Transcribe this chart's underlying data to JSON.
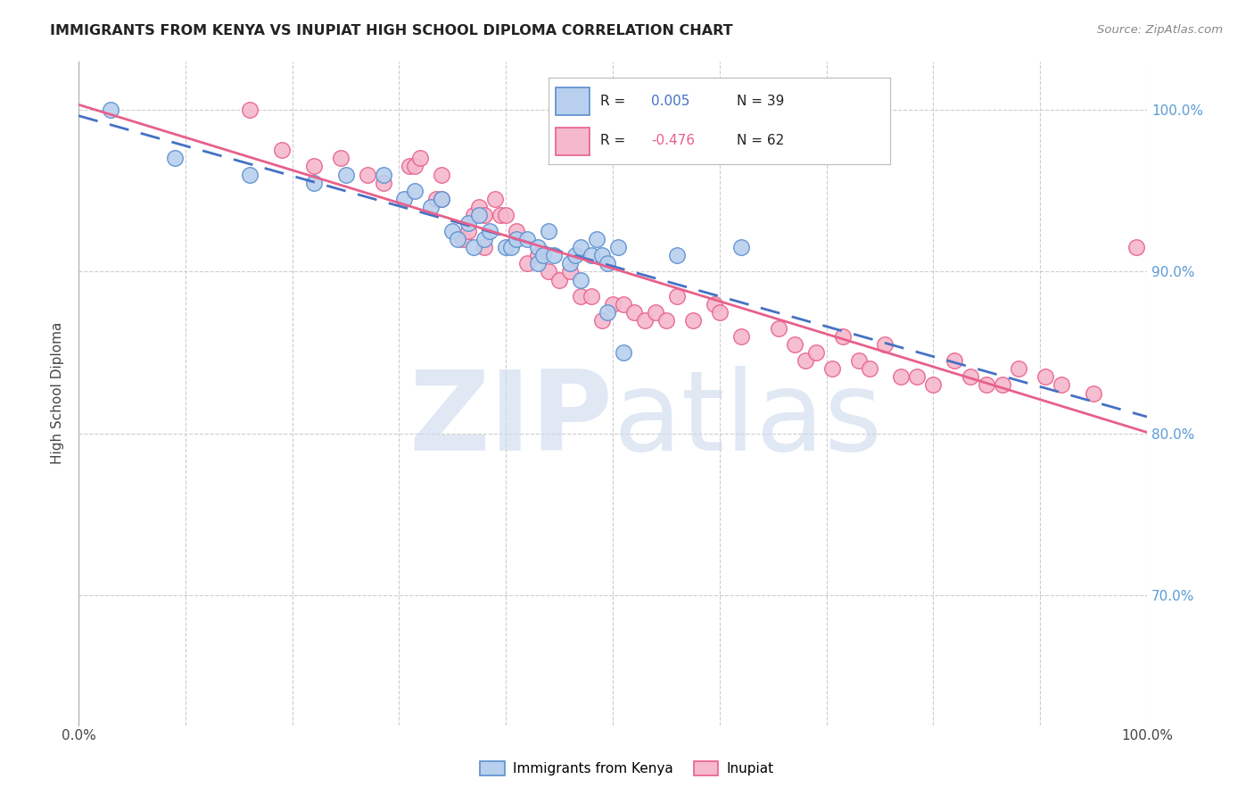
{
  "title": "IMMIGRANTS FROM KENYA VS INUPIAT HIGH SCHOOL DIPLOMA CORRELATION CHART",
  "source": "Source: ZipAtlas.com",
  "ylabel": "High School Diploma",
  "legend_label1": "Immigrants from Kenya",
  "legend_label2": "Inupiat",
  "R1": "0.005",
  "N1": "39",
  "R2": "-0.476",
  "N2": "62",
  "color_blue_fill": "#b8d0ed",
  "color_blue_edge": "#5b8ecf",
  "color_pink_fill": "#f5b8cc",
  "color_pink_edge": "#e8608a",
  "color_blue_line": "#4472c4",
  "color_pink_line": "#e8608a",
  "watermark_color": "#ccd9ee",
  "blue_scatter_x": [
    3.0,
    9.0,
    16.0,
    22.0,
    25.0,
    28.5,
    30.5,
    31.5,
    33.0,
    34.0,
    35.0,
    35.5,
    36.5,
    37.0,
    37.5,
    38.0,
    38.5,
    40.0,
    40.5,
    41.0,
    42.0,
    43.0,
    43.0,
    43.5,
    44.0,
    44.5,
    46.0,
    46.5,
    47.0,
    47.0,
    48.0,
    48.5,
    49.0,
    49.5,
    49.5,
    50.5,
    51.0,
    56.0,
    62.0
  ],
  "blue_scatter_y": [
    100.0,
    97.0,
    96.0,
    95.5,
    96.0,
    96.0,
    94.5,
    95.0,
    94.0,
    94.5,
    92.5,
    92.0,
    93.0,
    91.5,
    93.5,
    92.0,
    92.5,
    91.5,
    91.5,
    92.0,
    92.0,
    91.5,
    90.5,
    91.0,
    92.5,
    91.0,
    90.5,
    91.0,
    89.5,
    91.5,
    91.0,
    92.0,
    91.0,
    90.5,
    87.5,
    91.5,
    85.0,
    91.0,
    91.5
  ],
  "pink_scatter_x": [
    16.0,
    19.0,
    22.0,
    24.5,
    27.0,
    28.5,
    31.0,
    31.5,
    32.0,
    33.5,
    34.0,
    34.0,
    36.0,
    36.5,
    37.0,
    37.5,
    38.0,
    38.0,
    39.0,
    39.5,
    40.0,
    41.0,
    42.0,
    43.0,
    44.0,
    45.0,
    46.0,
    47.0,
    48.0,
    49.0,
    50.0,
    51.0,
    52.0,
    53.0,
    54.0,
    55.0,
    56.0,
    57.5,
    59.5,
    60.0,
    62.0,
    65.5,
    67.0,
    68.0,
    69.0,
    70.5,
    71.5,
    73.0,
    74.0,
    75.5,
    77.0,
    78.5,
    80.0,
    82.0,
    83.5,
    85.0,
    86.5,
    88.0,
    90.5,
    92.0,
    95.0,
    99.0
  ],
  "pink_scatter_y": [
    100.0,
    97.5,
    96.5,
    97.0,
    96.0,
    95.5,
    96.5,
    96.5,
    97.0,
    94.5,
    94.5,
    96.0,
    92.0,
    92.5,
    93.5,
    94.0,
    91.5,
    93.5,
    94.5,
    93.5,
    93.5,
    92.5,
    90.5,
    91.0,
    90.0,
    89.5,
    90.0,
    88.5,
    88.5,
    87.0,
    88.0,
    88.0,
    87.5,
    87.0,
    87.5,
    87.0,
    88.5,
    87.0,
    88.0,
    87.5,
    86.0,
    86.5,
    85.5,
    84.5,
    85.0,
    84.0,
    86.0,
    84.5,
    84.0,
    85.5,
    83.5,
    83.5,
    83.0,
    84.5,
    83.5,
    83.0,
    83.0,
    84.0,
    83.5,
    83.0,
    82.5,
    91.5
  ],
  "xlim": [
    0,
    100
  ],
  "ylim": [
    62,
    103
  ],
  "yticks": [
    70,
    80,
    90,
    100
  ],
  "ytick_labels": [
    "70.0%",
    "80.0%",
    "90.0%",
    "100.0%"
  ],
  "xtick_labels_show": [
    "0.0%",
    "100.0%"
  ],
  "grid_color": "#cccccc",
  "grid_style": "--"
}
